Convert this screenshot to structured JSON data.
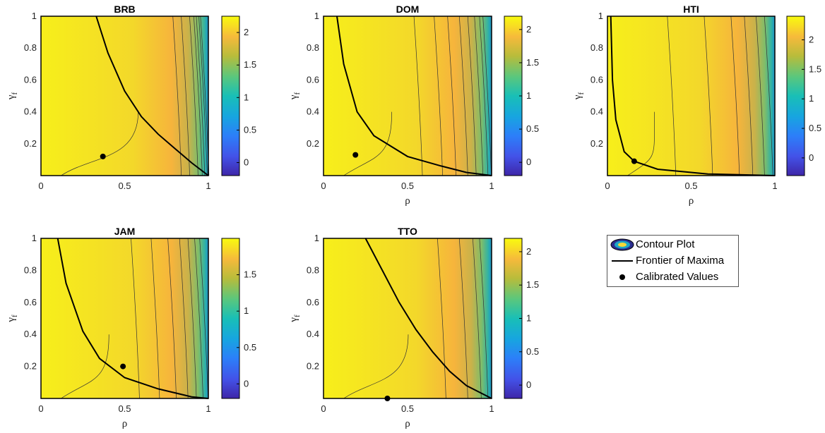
{
  "chart_data": [
    {
      "type": "contour",
      "title": "BRB",
      "xlabel": "",
      "ylabel": "γf",
      "xlim": [
        0,
        1
      ],
      "ylim": [
        0,
        1
      ],
      "xticks": [
        "0",
        "0.5",
        "1"
      ],
      "yticks": [
        "0.2",
        "0.4",
        "0.6",
        "0.8",
        "1"
      ],
      "colorbar": {
        "ticks": [
          "0",
          "0.5",
          "1",
          "1.5",
          "2"
        ],
        "range": [
          -0.2,
          2.25
        ]
      },
      "frontier": [
        [
          0.33,
          1.0
        ],
        [
          0.4,
          0.77
        ],
        [
          0.5,
          0.53
        ],
        [
          0.6,
          0.37
        ],
        [
          0.7,
          0.26
        ],
        [
          0.8,
          0.17
        ],
        [
          0.9,
          0.08
        ],
        [
          1.0,
          0.0
        ]
      ],
      "calibrated": [
        0.37,
        0.12
      ],
      "contour_x_fractions": [
        0.83,
        0.88,
        0.93,
        0.955,
        0.97,
        0.985,
        0.995
      ]
    },
    {
      "type": "contour",
      "title": "DOM",
      "xlabel": "ρ",
      "ylabel": "γf",
      "xlim": [
        0,
        1
      ],
      "ylim": [
        0,
        1
      ],
      "xticks": [
        "0",
        "0.5",
        "1"
      ],
      "yticks": [
        "0.2",
        "0.4",
        "0.6",
        "0.8",
        "1"
      ],
      "colorbar": {
        "ticks": [
          "0",
          "0.5",
          "1",
          "1.5",
          "2"
        ],
        "range": [
          -0.2,
          2.2
        ]
      },
      "frontier": [
        [
          0.08,
          1.0
        ],
        [
          0.12,
          0.7
        ],
        [
          0.2,
          0.4
        ],
        [
          0.3,
          0.25
        ],
        [
          0.5,
          0.12
        ],
        [
          0.7,
          0.06
        ],
        [
          0.85,
          0.02
        ],
        [
          1.0,
          0.0
        ]
      ],
      "calibrated": [
        0.19,
        0.13
      ],
      "contour_x_fractions": [
        0.58,
        0.7,
        0.78,
        0.85,
        0.9,
        0.94,
        0.97,
        0.99
      ]
    },
    {
      "type": "contour",
      "title": "HTI",
      "xlabel": "ρ",
      "ylabel": "γf",
      "xlim": [
        0,
        1
      ],
      "ylim": [
        0,
        1
      ],
      "xticks": [
        "0",
        "0.5",
        "1"
      ],
      "yticks": [
        "0.2",
        "0.4",
        "0.6",
        "0.8",
        "1"
      ],
      "colorbar": {
        "ticks": [
          "0",
          "0.5",
          "1",
          "1.5",
          "2"
        ],
        "range": [
          -0.3,
          2.4
        ]
      },
      "frontier": [
        [
          0.02,
          1.0
        ],
        [
          0.03,
          0.6
        ],
        [
          0.05,
          0.35
        ],
        [
          0.1,
          0.15
        ],
        [
          0.16,
          0.09
        ],
        [
          0.3,
          0.04
        ],
        [
          0.6,
          0.01
        ],
        [
          1.0,
          0.0
        ]
      ],
      "calibrated": [
        0.16,
        0.09
      ],
      "contour_x_fractions": [
        0.4,
        0.62,
        0.78,
        0.86,
        0.93,
        0.98
      ]
    },
    {
      "type": "contour",
      "title": "JAM",
      "xlabel": "ρ",
      "ylabel": "γf",
      "xlim": [
        0,
        1
      ],
      "ylim": [
        0,
        1
      ],
      "xticks": [
        "0",
        "0.5",
        "1"
      ],
      "yticks": [
        "0.2",
        "0.4",
        "0.6",
        "0.8",
        "1"
      ],
      "colorbar": {
        "ticks": [
          "0",
          "0.5",
          "1",
          "1.5"
        ],
        "range": [
          -0.2,
          2.0
        ]
      },
      "frontier": [
        [
          0.1,
          1.0
        ],
        [
          0.15,
          0.72
        ],
        [
          0.25,
          0.42
        ],
        [
          0.35,
          0.25
        ],
        [
          0.5,
          0.13
        ],
        [
          0.7,
          0.06
        ],
        [
          0.9,
          0.01
        ],
        [
          1.0,
          0.0
        ]
      ],
      "calibrated": [
        0.49,
        0.2
      ],
      "contour_x_fractions": [
        0.58,
        0.7,
        0.8,
        0.87,
        0.92,
        0.96,
        0.99
      ]
    },
    {
      "type": "contour",
      "title": "TTO",
      "xlabel": "ρ",
      "ylabel": "γf",
      "xlim": [
        0,
        1
      ],
      "ylim": [
        0,
        1
      ],
      "xticks": [
        "0",
        "0.5",
        "1"
      ],
      "yticks": [
        "0.2",
        "0.4",
        "0.6",
        "0.8",
        "1"
      ],
      "colorbar": {
        "ticks": [
          "0",
          "0.5",
          "1",
          "1.5",
          "2"
        ],
        "range": [
          -0.2,
          2.2
        ]
      },
      "frontier": [
        [
          0.25,
          1.0
        ],
        [
          0.35,
          0.8
        ],
        [
          0.45,
          0.6
        ],
        [
          0.55,
          0.43
        ],
        [
          0.65,
          0.29
        ],
        [
          0.75,
          0.17
        ],
        [
          0.85,
          0.08
        ],
        [
          1.0,
          0.0
        ]
      ],
      "calibrated": [
        0.38,
        0.0
      ],
      "contour_x_fractions": [
        0.72,
        0.85,
        0.93,
        0.97
      ]
    }
  ],
  "legend": {
    "items": [
      {
        "label": "Contour Plot",
        "icon": "contour-ellipse-icon"
      },
      {
        "label": "Frontier of Maxima",
        "icon": "line-icon"
      },
      {
        "label": "Calibrated Values",
        "icon": "dot-icon"
      }
    ]
  }
}
